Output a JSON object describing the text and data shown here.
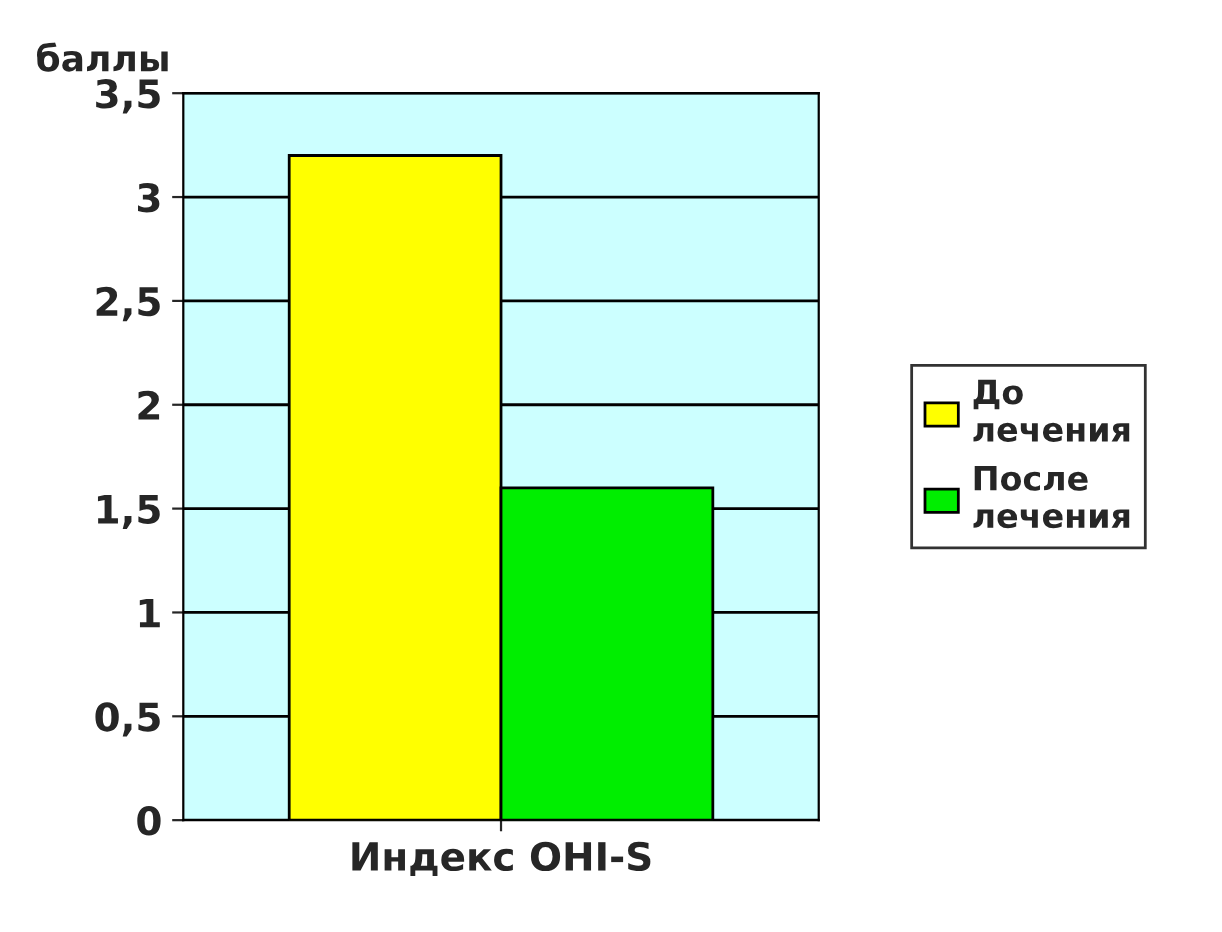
{
  "chart_data": {
    "type": "bar",
    "ylabel": "баллы",
    "categories": [
      "Индекс OHI-S"
    ],
    "series": [
      {
        "name": "До лечения",
        "color": "#ffff00",
        "values": [
          3.2
        ]
      },
      {
        "name": "После лечения",
        "color": "#00ee00",
        "values": [
          1.6
        ]
      }
    ],
    "ylim": [
      0,
      3.5
    ],
    "yticks": [
      0,
      {
        "value": 0.5,
        "label": "0,5"
      },
      1,
      {
        "value": 1.5,
        "label": "1,5"
      },
      2,
      {
        "value": 2.5,
        "label": "2,5"
      },
      3,
      {
        "value": 3.5,
        "label": "3,5"
      }
    ],
    "grid": "y",
    "legend": "right"
  }
}
